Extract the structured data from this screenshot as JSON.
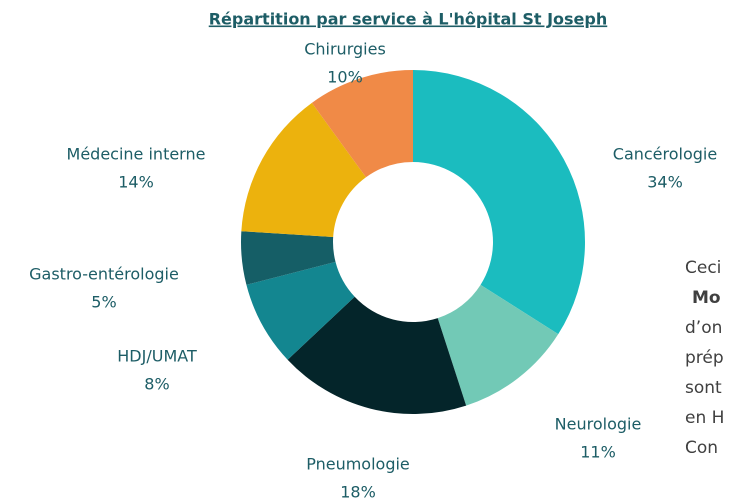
{
  "chart_data": {
    "type": "donut",
    "title": "Répartition par service à L'hôpital St Joseph",
    "categories": [
      "Cancérologie",
      "Neurologie",
      "Pneumologie",
      "HDJ/UMAT",
      "Gastro-entérologie",
      "Médecine interne",
      "Chirurgies"
    ],
    "values": [
      34,
      11,
      18,
      8,
      5,
      14,
      10
    ],
    "value_labels": [
      "34%",
      "11%",
      "18%",
      "8%",
      "5%",
      "14%",
      "10%"
    ],
    "colors": [
      "#1bbcbf",
      "#72c9b6",
      "#04252a",
      "#138690",
      "#155e66",
      "#ecb20d",
      "#f08a47"
    ]
  },
  "side_text": {
    "lines": [
      "Ceci",
      "Mo",
      "d’on",
      "prép",
      "sont",
      "en H",
      "Con"
    ]
  }
}
